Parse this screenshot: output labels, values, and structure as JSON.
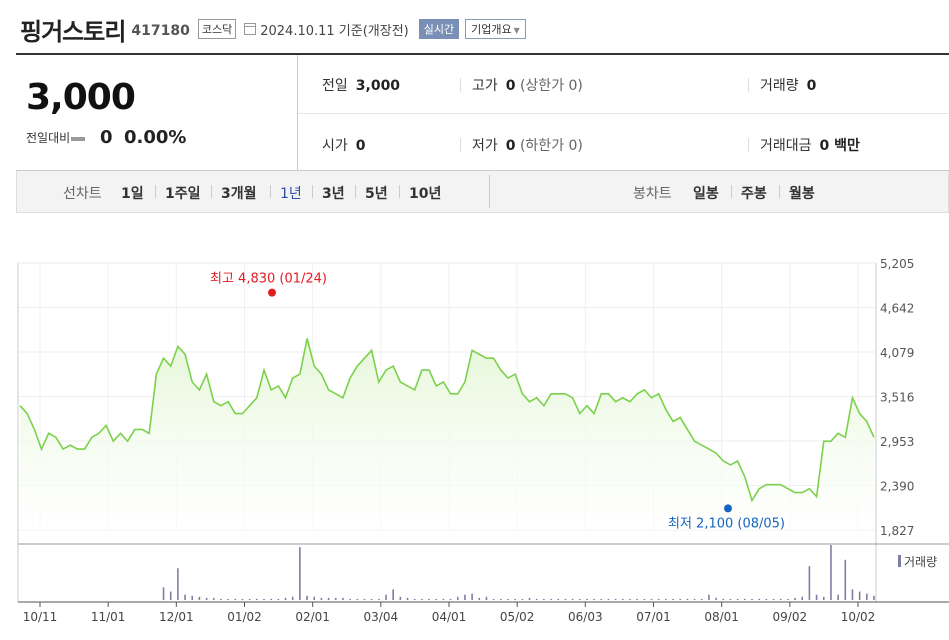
{
  "header": {
    "title": "핑거스토리",
    "code": "417180",
    "market": "코스닥",
    "date_text": "2024.10.11  기준(개장전)",
    "realtime_label": "실시간",
    "company_label": "기업개요"
  },
  "price": {
    "current": "3,000",
    "change_label": "전일대비",
    "change_value": "0",
    "change_pct": "0.00%"
  },
  "stats": {
    "prev_label": "전일",
    "prev_value": "3,000",
    "high_label": "고가",
    "high_value": "0",
    "high_sub": "(상한가 0)",
    "volume_label": "거래량",
    "volume_value": "0",
    "open_label": "시가",
    "open_value": "0",
    "low_label": "저가",
    "low_value": "0",
    "low_sub": "(하한가 0)",
    "amount_label": "거래대금",
    "amount_value": "0 백만"
  },
  "period_bar": {
    "line_label": "선차트",
    "line_items": [
      "1일",
      "1주일",
      "3개월",
      "1년",
      "3년",
      "5년",
      "10년"
    ],
    "active_index": 3,
    "candle_label": "봉차트",
    "candle_items": [
      "일봉",
      "주봉",
      "월봉"
    ]
  },
  "chart_data": {
    "type": "area",
    "y_ticks": [
      "5,205",
      "4,642",
      "4,079",
      "3,516",
      "2,953",
      "2,390",
      "1,827"
    ],
    "ylim": [
      1827,
      5205
    ],
    "x_ticks": [
      "10/11",
      "11/01",
      "12/01",
      "01/02",
      "02/01",
      "03/04",
      "04/01",
      "05/02",
      "06/03",
      "07/01",
      "08/01",
      "09/02",
      "10/02"
    ],
    "high_label": "최고 4,830 (01/24)",
    "low_label": "최저 2,100 (08/05)",
    "volume_label": "거래량",
    "line_color": "#7bd14b",
    "fill_color": "#e6f7d9",
    "high_color": "#e31b23",
    "low_color": "#1565c0",
    "prices": [
      3400,
      3300,
      3100,
      2850,
      3050,
      3000,
      2850,
      2900,
      2850,
      2850,
      3000,
      3050,
      3150,
      2950,
      3050,
      2950,
      3100,
      3100,
      3050,
      3800,
      4000,
      3900,
      4150,
      4050,
      3700,
      3600,
      3800,
      3450,
      3400,
      3450,
      3300,
      3300,
      3400,
      3500,
      3850,
      3600,
      3650,
      3500,
      3750,
      3800,
      4250,
      3900,
      3800,
      3600,
      3550,
      3500,
      3750,
      3900,
      4000,
      4100,
      3700,
      3850,
      3900,
      3700,
      3650,
      3600,
      3850,
      3850,
      3650,
      3700,
      3550,
      3550,
      3700,
      4100,
      4050,
      4000,
      4000,
      3850,
      3750,
      3800,
      3550,
      3450,
      3500,
      3400,
      3550,
      3550,
      3550,
      3500,
      3300,
      3400,
      3300,
      3550,
      3550,
      3450,
      3500,
      3450,
      3550,
      3600,
      3500,
      3550,
      3350,
      3200,
      3250,
      3100,
      2950,
      2900,
      2850,
      2800,
      2700,
      2650,
      2700,
      2500,
      2200,
      2350,
      2400,
      2400,
      2400,
      2350,
      2300,
      2300,
      2350,
      2250,
      2950,
      2950,
      3050,
      3000,
      3500,
      3300,
      3200,
      3000
    ],
    "volumes": [
      0,
      0,
      0,
      0,
      0,
      0,
      0,
      0,
      0,
      0,
      0,
      0,
      0,
      0,
      0,
      0,
      0,
      0,
      0,
      0,
      12,
      8,
      30,
      5,
      4,
      3,
      2,
      2,
      1,
      1,
      1,
      1,
      1,
      1,
      1,
      1,
      1,
      2,
      3,
      50,
      4,
      3,
      2,
      2,
      2,
      2,
      1,
      1,
      1,
      1,
      1,
      5,
      10,
      3,
      2,
      1,
      1,
      1,
      1,
      1,
      1,
      3,
      5,
      6,
      2,
      3,
      1,
      1,
      1,
      1,
      1,
      2,
      1,
      1,
      1,
      1,
      1,
      1,
      1,
      1,
      1,
      1,
      1,
      1,
      1,
      1,
      1,
      1,
      1,
      1,
      1,
      1,
      1,
      1,
      1,
      1,
      5,
      2,
      1,
      1,
      1,
      1,
      1,
      1,
      1,
      1,
      1,
      1,
      2,
      3,
      32,
      5,
      3,
      52,
      5,
      38,
      10,
      8,
      6,
      4
    ]
  }
}
